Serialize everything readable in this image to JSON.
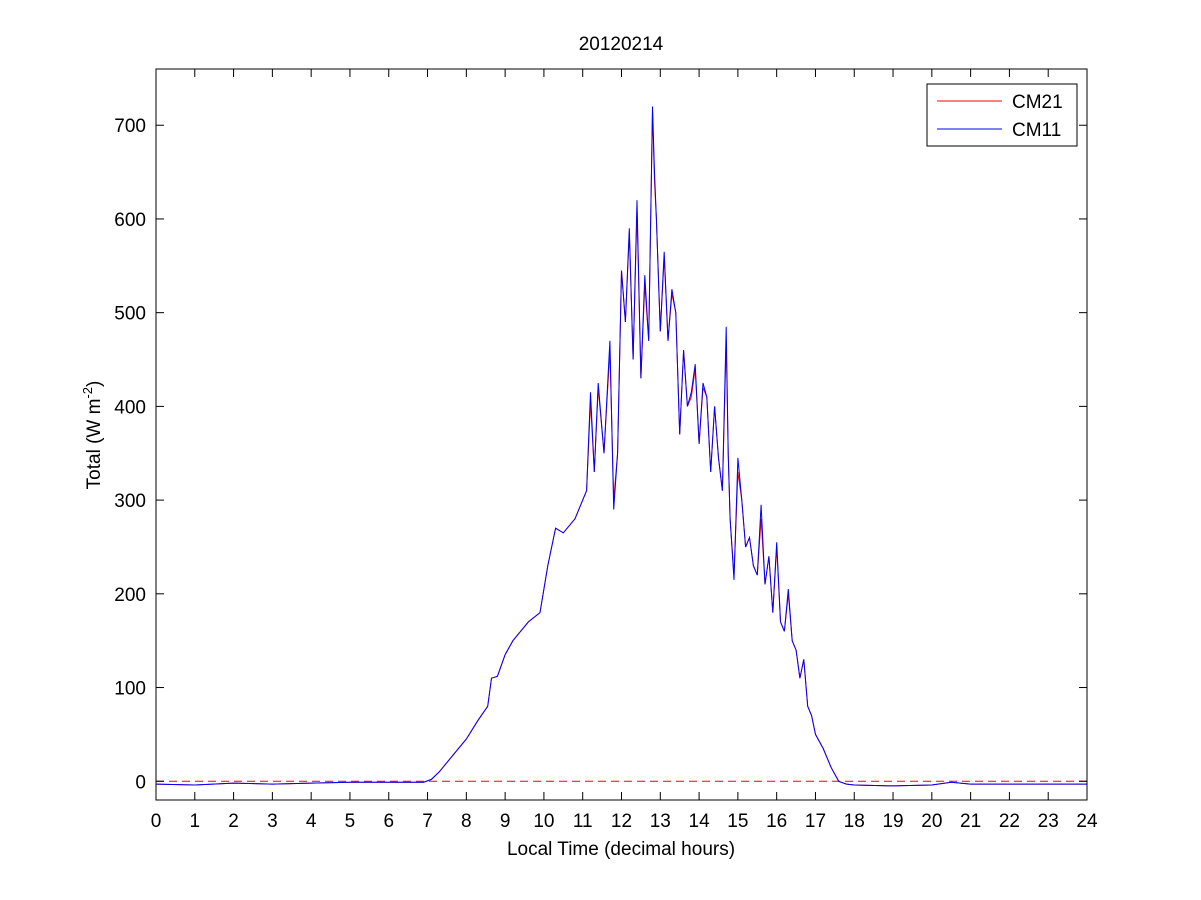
{
  "chart_data": {
    "type": "line",
    "title": "20120214",
    "xlabel": "Local Time (decimal hours)",
    "ylabel": {
      "main": "Total (W m",
      "sup": "-2",
      "tail": ")"
    },
    "xlim": [
      0,
      24
    ],
    "ylim": [
      -20,
      760
    ],
    "xticks": [
      0,
      1,
      2,
      3,
      4,
      5,
      6,
      7,
      8,
      9,
      10,
      11,
      12,
      13,
      14,
      15,
      16,
      17,
      18,
      19,
      20,
      21,
      22,
      23,
      24
    ],
    "yticks": [
      0,
      100,
      200,
      300,
      400,
      500,
      600,
      700
    ],
    "grid": false,
    "legend_position": "top-right",
    "reference_line": {
      "y": 0,
      "style": "dashed",
      "color": "#ff0000"
    },
    "series": [
      {
        "name": "CM21",
        "color": "#ff0000",
        "points": [
          [
            0,
            -3
          ],
          [
            1,
            -4
          ],
          [
            2,
            -2
          ],
          [
            3,
            -3
          ],
          [
            4,
            -2
          ],
          [
            5,
            -1
          ],
          [
            6,
            -1
          ],
          [
            6.9,
            -1
          ],
          [
            7.1,
            2
          ],
          [
            7.3,
            10
          ],
          [
            7.6,
            25
          ],
          [
            8,
            45
          ],
          [
            8.3,
            65
          ],
          [
            8.55,
            80
          ],
          [
            8.65,
            110
          ],
          [
            8.8,
            112
          ],
          [
            9,
            135
          ],
          [
            9.2,
            150
          ],
          [
            9.4,
            160
          ],
          [
            9.6,
            170
          ],
          [
            9.9,
            180
          ],
          [
            10.1,
            230
          ],
          [
            10.3,
            270
          ],
          [
            10.5,
            265
          ],
          [
            10.8,
            280
          ],
          [
            11,
            300
          ],
          [
            11.1,
            310
          ],
          [
            11.2,
            405
          ],
          [
            11.3,
            330
          ],
          [
            11.4,
            420
          ],
          [
            11.55,
            350
          ],
          [
            11.7,
            460
          ],
          [
            11.8,
            300
          ],
          [
            11.9,
            350
          ],
          [
            12.0,
            545
          ],
          [
            12.1,
            490
          ],
          [
            12.2,
            585
          ],
          [
            12.3,
            450
          ],
          [
            12.4,
            610
          ],
          [
            12.5,
            430
          ],
          [
            12.6,
            530
          ],
          [
            12.7,
            470
          ],
          [
            12.8,
            715
          ],
          [
            12.85,
            640
          ],
          [
            12.9,
            600
          ],
          [
            13.0,
            480
          ],
          [
            13.1,
            560
          ],
          [
            13.2,
            470
          ],
          [
            13.3,
            520
          ],
          [
            13.4,
            500
          ],
          [
            13.5,
            370
          ],
          [
            13.6,
            460
          ],
          [
            13.7,
            400
          ],
          [
            13.8,
            410
          ],
          [
            13.9,
            440
          ],
          [
            14.0,
            360
          ],
          [
            14.1,
            420
          ],
          [
            14.2,
            410
          ],
          [
            14.3,
            330
          ],
          [
            14.4,
            400
          ],
          [
            14.5,
            345
          ],
          [
            14.6,
            310
          ],
          [
            14.7,
            470
          ],
          [
            14.75,
            350
          ],
          [
            14.8,
            280
          ],
          [
            14.9,
            220
          ],
          [
            15.0,
            330
          ],
          [
            15.1,
            300
          ],
          [
            15.2,
            250
          ],
          [
            15.3,
            260
          ],
          [
            15.4,
            230
          ],
          [
            15.5,
            220
          ],
          [
            15.6,
            280
          ],
          [
            15.7,
            210
          ],
          [
            15.8,
            240
          ],
          [
            15.9,
            180
          ],
          [
            16.0,
            250
          ],
          [
            16.1,
            170
          ],
          [
            16.2,
            160
          ],
          [
            16.3,
            200
          ],
          [
            16.4,
            150
          ],
          [
            16.5,
            140
          ],
          [
            16.6,
            110
          ],
          [
            16.7,
            130
          ],
          [
            16.8,
            80
          ],
          [
            16.9,
            70
          ],
          [
            17.0,
            50
          ],
          [
            17.2,
            35
          ],
          [
            17.4,
            15
          ],
          [
            17.6,
            0
          ],
          [
            17.8,
            -3
          ],
          [
            18,
            -4
          ],
          [
            19,
            -5
          ],
          [
            20,
            -4
          ],
          [
            20.5,
            -1
          ],
          [
            21,
            -3
          ],
          [
            22,
            -3
          ],
          [
            23,
            -3
          ],
          [
            24,
            -3
          ]
        ]
      },
      {
        "name": "CM11",
        "color": "#0000ff",
        "points": [
          [
            0,
            -3
          ],
          [
            1,
            -4
          ],
          [
            2,
            -2
          ],
          [
            3,
            -3
          ],
          [
            4,
            -2
          ],
          [
            5,
            -1
          ],
          [
            6,
            -1
          ],
          [
            6.9,
            -1
          ],
          [
            7.1,
            2
          ],
          [
            7.3,
            10
          ],
          [
            7.6,
            25
          ],
          [
            8,
            45
          ],
          [
            8.3,
            65
          ],
          [
            8.55,
            80
          ],
          [
            8.65,
            110
          ],
          [
            8.8,
            112
          ],
          [
            9,
            135
          ],
          [
            9.2,
            150
          ],
          [
            9.4,
            160
          ],
          [
            9.6,
            170
          ],
          [
            9.9,
            180
          ],
          [
            10.1,
            230
          ],
          [
            10.3,
            270
          ],
          [
            10.5,
            265
          ],
          [
            10.8,
            280
          ],
          [
            11,
            300
          ],
          [
            11.1,
            310
          ],
          [
            11.2,
            415
          ],
          [
            11.3,
            330
          ],
          [
            11.4,
            425
          ],
          [
            11.55,
            350
          ],
          [
            11.7,
            470
          ],
          [
            11.8,
            290
          ],
          [
            11.9,
            350
          ],
          [
            12.0,
            545
          ],
          [
            12.1,
            490
          ],
          [
            12.2,
            590
          ],
          [
            12.3,
            450
          ],
          [
            12.4,
            620
          ],
          [
            12.5,
            430
          ],
          [
            12.6,
            540
          ],
          [
            12.7,
            470
          ],
          [
            12.8,
            720
          ],
          [
            12.85,
            650
          ],
          [
            12.9,
            600
          ],
          [
            13.0,
            480
          ],
          [
            13.1,
            565
          ],
          [
            13.2,
            470
          ],
          [
            13.3,
            525
          ],
          [
            13.4,
            500
          ],
          [
            13.5,
            370
          ],
          [
            13.6,
            460
          ],
          [
            13.7,
            400
          ],
          [
            13.8,
            415
          ],
          [
            13.9,
            445
          ],
          [
            14.0,
            360
          ],
          [
            14.1,
            425
          ],
          [
            14.2,
            410
          ],
          [
            14.3,
            330
          ],
          [
            14.4,
            400
          ],
          [
            14.5,
            345
          ],
          [
            14.6,
            310
          ],
          [
            14.7,
            485
          ],
          [
            14.75,
            350
          ],
          [
            14.8,
            280
          ],
          [
            14.9,
            215
          ],
          [
            15.0,
            345
          ],
          [
            15.1,
            300
          ],
          [
            15.2,
            250
          ],
          [
            15.3,
            260
          ],
          [
            15.4,
            230
          ],
          [
            15.5,
            220
          ],
          [
            15.6,
            295
          ],
          [
            15.7,
            210
          ],
          [
            15.8,
            240
          ],
          [
            15.9,
            180
          ],
          [
            16.0,
            255
          ],
          [
            16.1,
            170
          ],
          [
            16.2,
            160
          ],
          [
            16.3,
            205
          ],
          [
            16.4,
            150
          ],
          [
            16.5,
            140
          ],
          [
            16.6,
            110
          ],
          [
            16.7,
            130
          ],
          [
            16.8,
            80
          ],
          [
            16.9,
            70
          ],
          [
            17.0,
            50
          ],
          [
            17.2,
            35
          ],
          [
            17.4,
            15
          ],
          [
            17.6,
            0
          ],
          [
            17.8,
            -3
          ],
          [
            18,
            -4
          ],
          [
            19,
            -5
          ],
          [
            20,
            -4
          ],
          [
            20.5,
            -1
          ],
          [
            21,
            -3
          ],
          [
            22,
            -3
          ],
          [
            23,
            -3
          ],
          [
            24,
            -3
          ]
        ]
      }
    ]
  }
}
